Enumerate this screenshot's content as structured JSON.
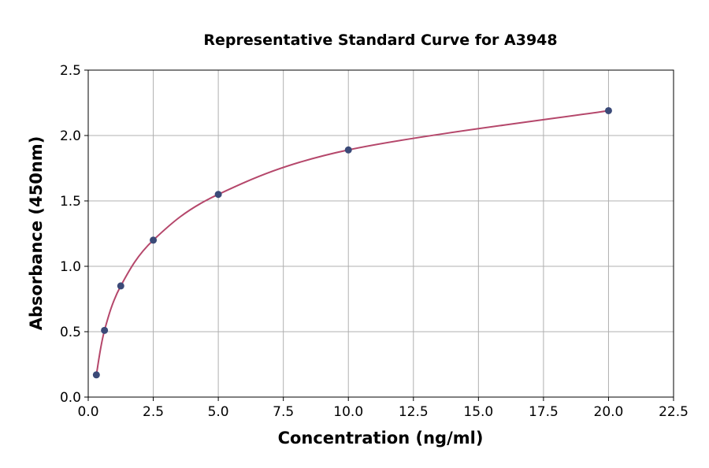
{
  "chart_data": {
    "type": "scatter",
    "title": "Representative Standard Curve for A3948",
    "xlabel": "Concentration (ng/ml)",
    "ylabel": "Absorbance (450nm)",
    "xlim": [
      0,
      22.5
    ],
    "ylim": [
      0,
      2.5
    ],
    "xticks": [
      "0.0",
      "2.5",
      "5.0",
      "7.5",
      "10.0",
      "12.5",
      "15.0",
      "17.5",
      "20.0",
      "22.5"
    ],
    "yticks": [
      "0.0",
      "0.5",
      "1.0",
      "1.5",
      "2.0",
      "2.5"
    ],
    "grid": true,
    "x": [
      0.3125,
      0.625,
      1.25,
      2.5,
      5,
      10,
      20
    ],
    "y": [
      0.17,
      0.51,
      0.85,
      1.2,
      1.55,
      1.89,
      2.19
    ],
    "point_color": "#3b4a78",
    "curve_color": "#b5476b"
  }
}
